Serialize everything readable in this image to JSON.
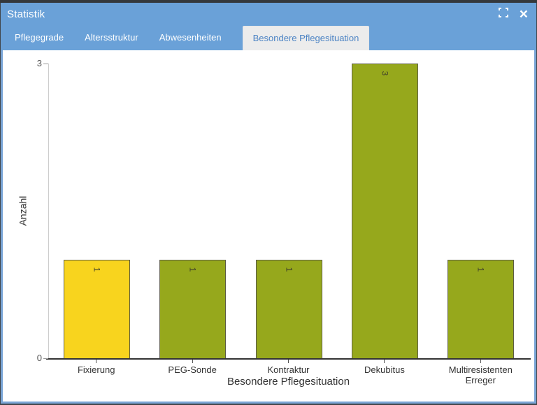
{
  "dialog": {
    "title": "Statistik",
    "close_glyph": "×"
  },
  "tabs": [
    {
      "label": "Pflegegrade",
      "active": false
    },
    {
      "label": "Altersstruktur",
      "active": false
    },
    {
      "label": "Abwesenheiten",
      "active": false
    },
    {
      "label": "Besondere Pflegesituation",
      "active": true
    }
  ],
  "colors": {
    "titlebar_blue": "#6aa1d8",
    "dialog_border_blue": "#7aa5d6",
    "active_tab_bg": "#ececec",
    "active_tab_text": "#4d84c4",
    "inactive_tab_text": "#ffffff",
    "content_bg": "#ffffff",
    "backdrop_dark": "#41464b",
    "bar_yellow": "#f8d41e",
    "bar_olive": "#96a81c",
    "bar_border": "#5c5c46",
    "xaxis_line": "#333333",
    "yaxis_line": "#cccccc",
    "tick_text": "#555555",
    "label_text": "#333333"
  },
  "chart_data": {
    "type": "bar",
    "title": "",
    "xlabel": "Besondere Pflegesituation",
    "ylabel": "Anzahl",
    "ylim": [
      0,
      3
    ],
    "yticks": [
      0,
      3
    ],
    "grid": false,
    "legend": null,
    "categories": [
      "Fixierung",
      "PEG-Sonde",
      "Kontraktur",
      "Dekubitus",
      "Multiresistenten Erreger"
    ],
    "values": [
      1,
      1,
      1,
      3,
      1
    ],
    "value_labels": [
      "1",
      "1",
      "1",
      "3",
      "1"
    ],
    "bar_colors": [
      "#f8d41e",
      "#96a81c",
      "#96a81c",
      "#96a81c",
      "#96a81c"
    ]
  }
}
